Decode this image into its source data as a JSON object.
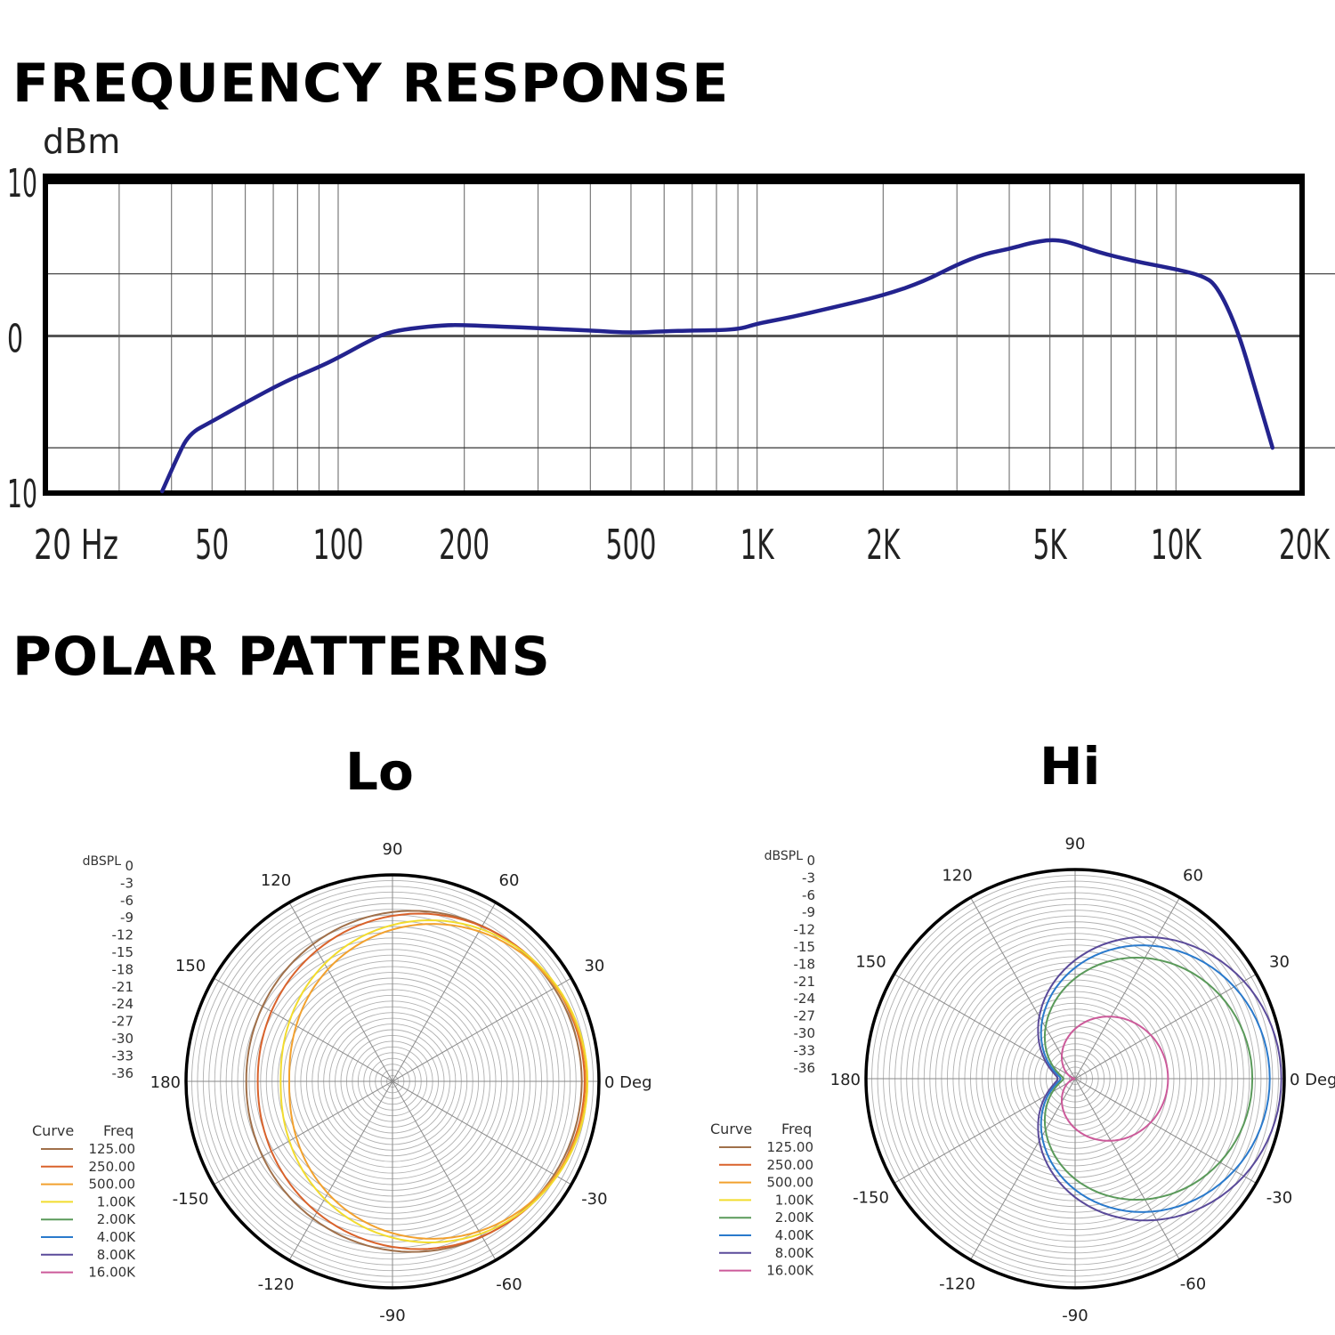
{
  "sections": {
    "frequency_title": "FREQUENCY RESPONSE",
    "polar_title": "POLAR PATTERNS"
  },
  "chart_data": [
    {
      "id": "frequency-response",
      "type": "line",
      "title": "FREQUENCY RESPONSE",
      "xlabel": "Hz",
      "ylabel": "dBm",
      "xscale": "log",
      "xlim": [
        20,
        20000
      ],
      "ylim": [
        -10,
        10
      ],
      "x_tick_labels": [
        {
          "value": 20,
          "label": "20 Hz"
        },
        {
          "value": 50,
          "label": "50"
        },
        {
          "value": 100,
          "label": "100"
        },
        {
          "value": 200,
          "label": "200"
        },
        {
          "value": 500,
          "label": "500"
        },
        {
          "value": 1000,
          "label": "1K"
        },
        {
          "value": 2000,
          "label": "2K"
        },
        {
          "value": 5000,
          "label": "5K"
        },
        {
          "value": 10000,
          "label": "10K"
        },
        {
          "value": 20000,
          "label": "20K"
        }
      ],
      "y_tick_labels": [
        {
          "value": 10,
          "label": "10"
        },
        {
          "value": 0,
          "label": "0"
        },
        {
          "value": -10,
          "label": "10"
        }
      ],
      "reference_lines_db": [
        4,
        0,
        -7.2
      ],
      "series": [
        {
          "name": "response",
          "color": "#23238e",
          "points": [
            [
              38,
              -10
            ],
            [
              41,
              -8
            ],
            [
              44,
              -6.3
            ],
            [
              50,
              -5.5
            ],
            [
              60,
              -4.3
            ],
            [
              75,
              -2.9
            ],
            [
              90,
              -2.0
            ],
            [
              100,
              -1.4
            ],
            [
              115,
              -0.5
            ],
            [
              130,
              0.2
            ],
            [
              150,
              0.5
            ],
            [
              180,
              0.7
            ],
            [
              200,
              0.7
            ],
            [
              250,
              0.6
            ],
            [
              300,
              0.5
            ],
            [
              400,
              0.35
            ],
            [
              500,
              0.2
            ],
            [
              600,
              0.3
            ],
            [
              700,
              0.35
            ],
            [
              900,
              0.4
            ],
            [
              1000,
              0.8
            ],
            [
              1200,
              1.2
            ],
            [
              1500,
              1.8
            ],
            [
              2000,
              2.6
            ],
            [
              2500,
              3.5
            ],
            [
              3000,
              4.6
            ],
            [
              3500,
              5.3
            ],
            [
              4000,
              5.6
            ],
            [
              4500,
              6.0
            ],
            [
              5000,
              6.2
            ],
            [
              5500,
              6.1
            ],
            [
              6500,
              5.4
            ],
            [
              8000,
              4.8
            ],
            [
              10000,
              4.3
            ],
            [
              11500,
              3.9
            ],
            [
              12500,
              3.3
            ],
            [
              14000,
              0.5
            ],
            [
              15500,
              -3.5
            ],
            [
              17000,
              -7.2
            ]
          ]
        }
      ]
    },
    {
      "id": "polar-lo",
      "type": "polar",
      "title": "Lo",
      "r_axis_label": "dBSPL",
      "r_tick_labels": [
        "0",
        "-3",
        "-6",
        "-9",
        "-12",
        "-15",
        "-18",
        "-21",
        "-24",
        "-27",
        "-30",
        "-33",
        "-36"
      ],
      "angle_labels": [
        {
          "deg": 90,
          "label": "90"
        },
        {
          "deg": 60,
          "label": "60"
        },
        {
          "deg": 30,
          "label": "30"
        },
        {
          "deg": 0,
          "label": "0 Deg"
        },
        {
          "deg": -30,
          "label": "-30"
        },
        {
          "deg": -60,
          "label": "-60"
        },
        {
          "deg": -90,
          "label": "-90"
        },
        {
          "deg": -120,
          "label": "-120"
        },
        {
          "deg": -150,
          "label": "-150"
        },
        {
          "deg": 180,
          "label": "180"
        },
        {
          "deg": 150,
          "label": "150"
        },
        {
          "deg": 120,
          "label": "120"
        }
      ],
      "legend": {
        "header_curve": "Curve",
        "header_freq": "Freq",
        "entries": [
          {
            "freq": "125.00",
            "color": "#a0704a"
          },
          {
            "freq": "250.00",
            "color": "#d9622b"
          },
          {
            "freq": "500.00",
            "color": "#f2a12e"
          },
          {
            "freq": "1.00K",
            "color": "#f2dc2e"
          },
          {
            "freq": "2.00K",
            "color": "#5a9a5a"
          },
          {
            "freq": "4.00K",
            "color": "#2a7acc"
          },
          {
            "freq": "8.00K",
            "color": "#5a4a9a"
          },
          {
            "freq": "16.00K",
            "color": "#cc5a9a"
          }
        ]
      },
      "series": [
        {
          "freq": "125.00",
          "color": "#a0704a",
          "model": "cardioid",
          "front_db": -3.0,
          "rear_db": -10.5
        },
        {
          "freq": "250.00",
          "color": "#d9622b",
          "model": "cardioid",
          "front_db": -2.5,
          "rear_db": -12.5
        },
        {
          "freq": "500.00",
          "color": "#f2a12e",
          "model": "cardioid",
          "front_db": -2.2,
          "rear_db": -18.0
        },
        {
          "freq": "1.00K",
          "color": "#f2dc2e",
          "model": "cardioid",
          "front_db": -2.0,
          "rear_db": -16.5
        }
      ]
    },
    {
      "id": "polar-hi",
      "type": "polar",
      "title": "Hi",
      "r_axis_label": "dBSPL",
      "r_tick_labels": [
        "0",
        "-3",
        "-6",
        "-9",
        "-12",
        "-15",
        "-18",
        "-21",
        "-24",
        "-27",
        "-30",
        "-33",
        "-36"
      ],
      "angle_labels": [
        {
          "deg": 90,
          "label": "90"
        },
        {
          "deg": 60,
          "label": "60"
        },
        {
          "deg": 30,
          "label": "30"
        },
        {
          "deg": 0,
          "label": "0 Deg"
        },
        {
          "deg": -30,
          "label": "-30"
        },
        {
          "deg": -60,
          "label": "-60"
        },
        {
          "deg": -90,
          "label": "-90"
        },
        {
          "deg": -120,
          "label": "-120"
        },
        {
          "deg": -150,
          "label": "-150"
        },
        {
          "deg": 180,
          "label": "180"
        },
        {
          "deg": 150,
          "label": "150"
        },
        {
          "deg": 120,
          "label": "120"
        }
      ],
      "legend": {
        "header_curve": "Curve",
        "header_freq": "Freq",
        "entries": [
          {
            "freq": "125.00",
            "color": "#a0704a"
          },
          {
            "freq": "250.00",
            "color": "#d9622b"
          },
          {
            "freq": "500.00",
            "color": "#f2a12e"
          },
          {
            "freq": "1.00K",
            "color": "#f2dc2e"
          },
          {
            "freq": "2.00K",
            "color": "#5a9a5a"
          },
          {
            "freq": "4.00K",
            "color": "#2a7acc"
          },
          {
            "freq": "8.00K",
            "color": "#5a4a9a"
          },
          {
            "freq": "16.00K",
            "color": "#cc5a9a"
          }
        ]
      },
      "series": [
        {
          "freq": "8.00K",
          "color": "#5a4a9a",
          "model": "cardioid",
          "front_db": -0.5,
          "rear_db": -33.0
        },
        {
          "freq": "4.00K",
          "color": "#2a7acc",
          "model": "cardioid",
          "front_db": -2.5,
          "rear_db": -33.5
        },
        {
          "freq": "2.00K",
          "color": "#5a9a5a",
          "model": "cardioid",
          "front_db": -5.5,
          "rear_db": -34.0
        },
        {
          "freq": "16.00K",
          "color": "#cc5a9a",
          "model": "cardioid",
          "front_db": -20.0,
          "rear_db": -36.0
        }
      ]
    }
  ]
}
